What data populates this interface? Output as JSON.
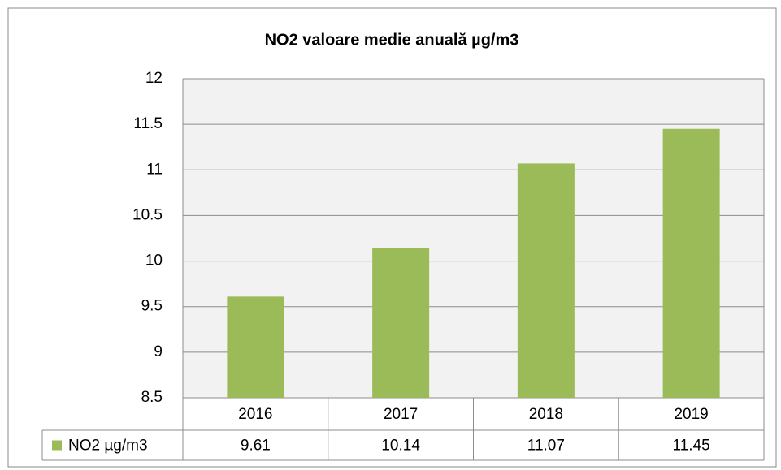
{
  "chart_data": {
    "type": "bar",
    "title": "NO2 valoare medie anuală µg/m3",
    "categories": [
      "2016",
      "2017",
      "2018",
      "2019"
    ],
    "series": [
      {
        "name": "NO2 µg/m3",
        "color": "#9bbb59",
        "values": [
          9.61,
          10.14,
          11.07,
          11.45
        ]
      }
    ],
    "ylim": [
      8.5,
      12
    ],
    "yticks": [
      8.5,
      9,
      9.5,
      10,
      10.5,
      11,
      11.5,
      12
    ],
    "grid": true,
    "legend": "data-table"
  }
}
